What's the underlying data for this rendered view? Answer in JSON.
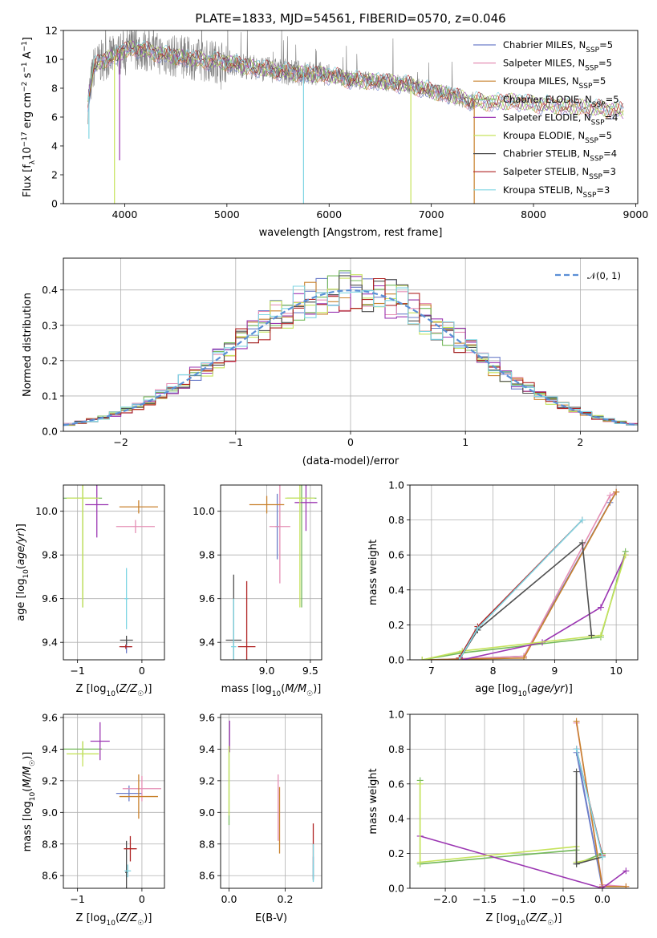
{
  "colors": {
    "Chabrier MILES": "#6d7ec9",
    "Salpeter MILES": "#e58fb5",
    "Kroupa MILES": "#c8812c",
    "Chabrier ELODIE": "#74b95a",
    "Salpeter ELODIE": "#9b36b2",
    "Kroupa ELODIE": "#c6e35d",
    "Chabrier STELIB": "#4f4f4f",
    "Salpeter STELIB": "#b02424",
    "Kroupa STELIB": "#7fd5e3",
    "normal": "#5b8fd6",
    "spectrum": "#808080",
    "mass_bold": "#d9724c"
  },
  "chart_data": [
    {
      "id": "spectrum",
      "type": "line",
      "title": "PLATE=1833, MJD=54561, FIBERID=0570, z=0.046",
      "xlabel": "wavelength [Angstrom, rest frame]",
      "ylabel": "Flux [f",
      "ylabel_parts": [
        "Flux [f",
        "λ",
        "10",
        "−17",
        " erg cm",
        "−2",
        " s",
        "−1",
        " A",
        "−1",
        "]"
      ],
      "xlim": [
        3400,
        9020
      ],
      "ylim": [
        0,
        12
      ],
      "xticks": [
        4000,
        5000,
        6000,
        7000,
        8000,
        9000
      ],
      "yticks": [
        0,
        2,
        4,
        6,
        8,
        10,
        12
      ],
      "legend_position": "top-right",
      "series": [
        {
          "name": "Chabrier MILES",
          "label": "Chabrier MILES, N",
          "sub": "SSP",
          "n": "=5"
        },
        {
          "name": "Salpeter MILES",
          "label": "Salpeter MILES, N",
          "sub": "SSP",
          "n": "=5"
        },
        {
          "name": "Kroupa MILES",
          "label": "Kroupa MILES, N",
          "sub": "SSP",
          "n": "=5"
        },
        {
          "name": "Chabrier ELODIE",
          "label": "Chabrier ELODIE, N",
          "sub": "SSP",
          "n": "=5"
        },
        {
          "name": "Salpeter ELODIE",
          "label": "Salpeter ELODIE, N",
          "sub": "SSP",
          "n": "=4"
        },
        {
          "name": "Kroupa ELODIE",
          "label": "Kroupa ELODIE, N",
          "sub": "SSP",
          "n": "=5"
        },
        {
          "name": "Chabrier STELIB",
          "label": "Chabrier STELIB, N",
          "sub": "SSP",
          "n": "=4"
        },
        {
          "name": "Salpeter STELIB",
          "label": "Salpeter STELIB, N",
          "sub": "SSP",
          "n": "=3"
        },
        {
          "name": "Kroupa STELIB",
          "label": "Kroupa STELIB, N",
          "sub": "SSP",
          "n": "=3"
        }
      ],
      "continuum": {
        "x": [
          3640,
          3700,
          3800,
          3900,
          4000,
          4100,
          4200,
          4400,
          4600,
          4800,
          5000,
          5200,
          5400,
          5600,
          5800,
          6000,
          6200,
          6400,
          6600,
          6800,
          7000,
          7200,
          7400,
          7600,
          7800,
          8000,
          8200,
          8400,
          8600,
          8800,
          8880
        ],
        "y": [
          7.0,
          9.5,
          10.0,
          10.2,
          10.6,
          10.8,
          10.6,
          10.3,
          10.1,
          9.9,
          9.8,
          9.5,
          9.3,
          9.1,
          9.0,
          8.9,
          8.6,
          8.5,
          8.4,
          8.2,
          7.8,
          7.5,
          7.1,
          7.0,
          7.1,
          6.9,
          6.8,
          6.7,
          6.6,
          6.5,
          6.4
        ]
      },
      "observed_range": [
        3640,
        7420
      ],
      "model_dips": [
        {
          "series": "Kroupa ELODIE",
          "x": 3900,
          "y": 0.0
        },
        {
          "series": "Kroupa STELIB",
          "x": 5750,
          "y": 0.0
        },
        {
          "series": "Kroupa ELODIE",
          "x": 6800,
          "y": 0.0
        },
        {
          "series": "Kroupa MILES",
          "x": 7420,
          "y": 0.0
        },
        {
          "series": "Salpeter ELODIE",
          "x": 3950,
          "y": 3.0
        },
        {
          "series": "Kroupa STELIB",
          "x": 3650,
          "y": 4.5
        }
      ]
    },
    {
      "id": "residuals",
      "type": "step",
      "xlabel": "(data-model)/error",
      "ylabel": "Normed distribution",
      "xlim": [
        -2.5,
        2.5
      ],
      "ylim": [
        0,
        0.49
      ],
      "xticks": [
        -2,
        -1,
        0,
        1,
        2
      ],
      "yticks": [
        0.0,
        0.1,
        0.2,
        0.3,
        0.4
      ],
      "legend": "𝒩(0, 1)",
      "legend_position": "top-right",
      "bin_width": 0.1,
      "bin_start": -2.5,
      "grid": true
    },
    {
      "id": "age_vs_Z",
      "type": "errorbar",
      "xlabel": "Z [log",
      "xlabel_parts": [
        "Z [log",
        "10",
        "(Z/Z",
        "☉",
        ")]"
      ],
      "ylabel_parts": [
        "age  [log",
        "10",
        "(age/yr)]"
      ],
      "xlim": [
        -1.22,
        0.35
      ],
      "ylim": [
        9.32,
        10.12
      ],
      "xticks": [
        -1,
        0
      ],
      "yticks": [
        9.4,
        9.6,
        9.8,
        10.0
      ],
      "points": [
        {
          "s": "Chabrier MILES",
          "x": -0.24,
          "y": 9.38,
          "xerr": 0.08,
          "yerr": 0.03
        },
        {
          "s": "Salpeter MILES",
          "x": -0.1,
          "y": 9.93,
          "xerr": 0.3,
          "yerr": 0.03
        },
        {
          "s": "Kroupa MILES",
          "x": -0.05,
          "y": 10.02,
          "xerr": 0.3,
          "yerr": 0.03
        },
        {
          "s": "Chabrier ELODIE",
          "x": -0.92,
          "y": 10.06,
          "xerr": 0.3,
          "yerr": 0.5
        },
        {
          "s": "Salpeter ELODIE",
          "x": -0.7,
          "y": 10.03,
          "xerr": 0.18,
          "yerr": 0.15
        },
        {
          "s": "Kroupa ELODIE",
          "x": -0.92,
          "y": 10.06,
          "xerr": 0.25,
          "yerr": 0.5
        },
        {
          "s": "Chabrier STELIB",
          "x": -0.24,
          "y": 9.41,
          "xerr": 0.1,
          "yerr": 0.02
        },
        {
          "s": "Salpeter STELIB",
          "x": -0.25,
          "y": 9.38,
          "xerr": 0.1,
          "yerr": 0.01
        },
        {
          "s": "Kroupa STELIB",
          "x": -0.24,
          "y": 9.6,
          "xerr": 0.03,
          "yerr": 0.14
        }
      ]
    },
    {
      "id": "age_vs_mass",
      "type": "errorbar",
      "xlabel_parts": [
        "mass [log",
        "10",
        "(M/M",
        "☉",
        ")]"
      ],
      "xlim": [
        8.47,
        9.63
      ],
      "ylim": [
        9.32,
        10.12
      ],
      "xticks": [
        9.0,
        9.5
      ],
      "yticks": [
        9.4,
        9.6,
        9.8,
        10.0
      ],
      "points": [
        {
          "s": "Chabrier MILES",
          "x": 9.12,
          "y": 9.93,
          "xerr": 0.02,
          "yerr": 0.15
        },
        {
          "s": "Salpeter MILES",
          "x": 9.15,
          "y": 9.93,
          "xerr": 0.12,
          "yerr": 0.26
        },
        {
          "s": "Kroupa MILES",
          "x": 9.0,
          "y": 10.03,
          "xerr": 0.2,
          "yerr": 0.04
        },
        {
          "s": "Chabrier ELODIE",
          "x": 9.4,
          "y": 10.06,
          "xerr": 0.17,
          "yerr": 0.5
        },
        {
          "s": "Salpeter ELODIE",
          "x": 9.45,
          "y": 10.04,
          "xerr": 0.13,
          "yerr": 0.13
        },
        {
          "s": "Kroupa ELODIE",
          "x": 9.38,
          "y": 10.06,
          "xerr": 0.17,
          "yerr": 0.5
        },
        {
          "s": "Chabrier STELIB",
          "x": 8.62,
          "y": 9.41,
          "xerr": 0.09,
          "yerr": 0.3
        },
        {
          "s": "Salpeter STELIB",
          "x": 8.77,
          "y": 9.38,
          "xerr": 0.1,
          "yerr": 0.3
        },
        {
          "s": "Kroupa STELIB",
          "x": 8.62,
          "y": 9.38,
          "xerr": 0.03,
          "yerr": 0.22
        }
      ]
    },
    {
      "id": "weight_vs_age",
      "type": "line",
      "xlabel_parts": [
        "age  [log",
        "10",
        "(age/yr)]"
      ],
      "ylabel": "mass weight",
      "xlim": [
        6.65,
        10.35
      ],
      "ylim": [
        0,
        1
      ],
      "xticks": [
        7,
        8,
        9,
        10
      ],
      "yticks": [
        0.0,
        0.2,
        0.4,
        0.6,
        0.8,
        1.0
      ],
      "series": [
        {
          "name": "Chabrier MILES",
          "x": [
            7.0,
            8.5,
            9.9,
            10.0
          ],
          "y": [
            0.0,
            0.02,
            0.9,
            0.96
          ]
        },
        {
          "name": "Salpeter MILES",
          "x": [
            7.0,
            8.5,
            9.9,
            10.0
          ],
          "y": [
            0.0,
            0.02,
            0.94,
            0.96
          ]
        },
        {
          "name": "Kroupa MILES",
          "x": [
            6.85,
            8.5,
            10.0
          ],
          "y": [
            0.0,
            0.01,
            0.96
          ]
        },
        {
          "name": "Chabrier ELODIE",
          "x": [
            6.85,
            7.5,
            9.75,
            10.15
          ],
          "y": [
            0.0,
            0.04,
            0.13,
            0.62
          ]
        },
        {
          "name": "Salpeter ELODIE",
          "x": [
            7.5,
            8.8,
            9.75,
            10.15
          ],
          "y": [
            0.0,
            0.1,
            0.3,
            0.6
          ]
        },
        {
          "name": "Kroupa ELODIE",
          "x": [
            6.85,
            7.5,
            9.75,
            10.15
          ],
          "y": [
            0.0,
            0.05,
            0.14,
            0.6
          ]
        },
        {
          "name": "Chabrier STELIB",
          "x": [
            7.45,
            7.75,
            9.45,
            9.6
          ],
          "y": [
            0.0,
            0.17,
            0.67,
            0.14
          ]
        },
        {
          "name": "Salpeter STELIB",
          "x": [
            7.45,
            7.75,
            9.45
          ],
          "y": [
            0.01,
            0.19,
            0.8
          ]
        },
        {
          "name": "Kroupa STELIB",
          "x": [
            7.45,
            7.75,
            9.45
          ],
          "y": [
            0.0,
            0.18,
            0.8
          ]
        }
      ]
    },
    {
      "id": "mass_vs_Z",
      "type": "errorbar",
      "xlabel_parts": [
        "Z [log",
        "10",
        "(Z/Z",
        "☉",
        ")]"
      ],
      "ylabel_parts": [
        "mass [log",
        "10",
        "(M/M",
        "☉",
        ")]"
      ],
      "xlim": [
        -1.22,
        0.35
      ],
      "ylim": [
        8.52,
        9.62
      ],
      "xticks": [
        -1,
        0
      ],
      "yticks": [
        8.6,
        8.8,
        9.0,
        9.2,
        9.4,
        9.6
      ],
      "points": [
        {
          "s": "Chabrier MILES",
          "x": -0.2,
          "y": 9.12,
          "xerr": 0.2,
          "yerr": 0.05
        },
        {
          "s": "Salpeter MILES",
          "x": 0.0,
          "y": 9.15,
          "xerr": 0.3,
          "yerr": 0.08
        },
        {
          "s": "Kroupa MILES",
          "x": -0.05,
          "y": 9.1,
          "xerr": 0.3,
          "yerr": 0.14
        },
        {
          "s": "Chabrier ELODIE",
          "x": -0.92,
          "y": 9.4,
          "xerr": 0.3,
          "yerr": 0.05
        },
        {
          "s": "Salpeter ELODIE",
          "x": -0.65,
          "y": 9.45,
          "xerr": 0.15,
          "yerr": 0.12
        },
        {
          "s": "Kroupa ELODIE",
          "x": -0.92,
          "y": 9.37,
          "xerr": 0.25,
          "yerr": 0.08
        },
        {
          "s": "Chabrier STELIB",
          "x": -0.24,
          "y": 8.62,
          "xerr": 0.02,
          "yerr": 0.2
        },
        {
          "s": "Salpeter STELIB",
          "x": -0.18,
          "y": 8.77,
          "xerr": 0.1,
          "yerr": 0.08
        },
        {
          "s": "Kroupa STELIB",
          "x": -0.22,
          "y": 8.63,
          "xerr": 0.05,
          "yerr": 0.04
        }
      ]
    },
    {
      "id": "mass_vs_ebv",
      "type": "errorbar",
      "xlabel": "E(B-V)",
      "xlim": [
        -0.03,
        0.33
      ],
      "ylim": [
        8.52,
        9.62
      ],
      "xticks": [
        0.0,
        0.2
      ],
      "yticks": [
        8.6,
        8.8,
        9.0,
        9.2,
        9.4,
        9.6
      ],
      "points": [
        {
          "s": "Chabrier MILES",
          "x": 0.3,
          "y": 8.65,
          "xerr": 0,
          "yerr": 0.07
        },
        {
          "s": "Salpeter MILES",
          "x": 0.175,
          "y": 9.03,
          "xerr": 0,
          "yerr": 0.21
        },
        {
          "s": "Kroupa MILES",
          "x": 0.18,
          "y": 8.95,
          "xerr": 0,
          "yerr": 0.21
        },
        {
          "s": "Chabrier ELODIE",
          "x": 0.0,
          "y": 9.17,
          "xerr": 0,
          "yerr": 0.25
        },
        {
          "s": "Salpeter ELODIE",
          "x": 0.002,
          "y": 9.48,
          "xerr": 0,
          "yerr": 0.1
        },
        {
          "s": "Kroupa ELODIE",
          "x": 0.0,
          "y": 9.2,
          "xerr": 0,
          "yerr": 0.22
        },
        {
          "s": "Chabrier STELIB",
          "x": 0.3,
          "y": 8.62,
          "xerr": 0,
          "yerr": 0.05
        },
        {
          "s": "Salpeter STELIB",
          "x": 0.3,
          "y": 8.8,
          "xerr": 0,
          "yerr": 0.13
        },
        {
          "s": "Kroupa STELIB",
          "x": 0.3,
          "y": 8.68,
          "xerr": 0,
          "yerr": 0.12
        }
      ]
    },
    {
      "id": "weight_vs_Z",
      "type": "line",
      "xlabel_parts": [
        "Z [log",
        "10",
        "(Z/Z",
        "☉",
        ")]"
      ],
      "ylabel": "mass weight",
      "xlim": [
        -2.45,
        0.45
      ],
      "ylim": [
        0,
        1
      ],
      "xticks": [
        -2.0,
        -1.5,
        -1.0,
        -0.5,
        0.0
      ],
      "yticks": [
        0.0,
        0.2,
        0.4,
        0.6,
        0.8,
        1.0
      ],
      "series": [
        {
          "name": "Chabrier MILES",
          "x": [
            -0.33,
            0.0,
            -0.33
          ],
          "y": [
            0.8,
            0.0,
            0.78
          ]
        },
        {
          "name": "Salpeter MILES",
          "x": [
            -0.33,
            0.0,
            0.3
          ],
          "y": [
            0.95,
            0.02,
            0.01
          ]
        },
        {
          "name": "Kroupa MILES",
          "x": [
            -0.33,
            0.0,
            0.3
          ],
          "y": [
            0.96,
            0.01,
            0.01
          ]
        },
        {
          "name": "Chabrier ELODIE",
          "x": [
            -2.32,
            -2.32,
            -0.33,
            -0.33,
            0.0
          ],
          "y": [
            0.62,
            0.14,
            0.22,
            0.14,
            0.2
          ]
        },
        {
          "name": "Salpeter ELODIE",
          "x": [
            -2.32,
            0.0,
            0.3
          ],
          "y": [
            0.3,
            0.0,
            0.1
          ]
        },
        {
          "name": "Kroupa ELODIE",
          "x": [
            -2.32,
            -2.32,
            -0.33,
            -0.33,
            0.0
          ],
          "y": [
            0.6,
            0.15,
            0.24,
            0.15,
            0.18
          ]
        },
        {
          "name": "Chabrier STELIB",
          "x": [
            -0.33,
            -0.33,
            0.0,
            -0.33
          ],
          "y": [
            0.67,
            0.14,
            0.18,
            0.14
          ]
        },
        {
          "name": "Salpeter STELIB",
          "x": [
            -0.33,
            0.0
          ],
          "y": [
            0.8,
            0.19
          ]
        },
        {
          "name": "Kroupa STELIB",
          "x": [
            -0.33,
            0.0
          ],
          "y": [
            0.8,
            0.18
          ]
        }
      ]
    }
  ]
}
